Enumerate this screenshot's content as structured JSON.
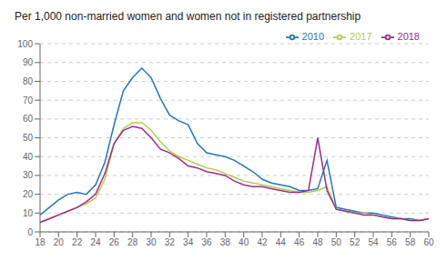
{
  "chart_data": {
    "type": "line",
    "title": "Per 1,000 non-married women and women not in registered partnership",
    "x": [
      18,
      19,
      20,
      21,
      22,
      23,
      24,
      25,
      26,
      27,
      28,
      29,
      30,
      31,
      32,
      33,
      34,
      35,
      36,
      37,
      38,
      39,
      40,
      41,
      42,
      43,
      44,
      45,
      46,
      47,
      48,
      49,
      50,
      51,
      52,
      53,
      54,
      55,
      56,
      57,
      58,
      59,
      60
    ],
    "series": [
      {
        "name": "2010",
        "color": "#2277b8",
        "values": [
          9,
          13,
          17,
          20,
          21,
          20,
          25,
          37,
          57,
          75,
          82,
          87,
          82,
          71,
          62,
          59,
          57,
          47,
          42,
          41,
          40,
          38,
          35,
          32,
          28,
          26,
          25,
          24,
          22,
          22,
          23,
          38,
          13,
          12,
          11,
          10,
          10,
          9,
          8,
          7,
          7,
          6,
          7
        ]
      },
      {
        "name": "2017",
        "color": "#b5cc4a",
        "values": [
          5,
          7,
          9,
          11,
          13,
          15,
          18,
          28,
          47,
          55,
          58,
          58,
          54,
          48,
          43,
          40,
          38,
          36,
          34,
          33,
          31,
          29,
          27,
          26,
          25,
          24,
          23,
          22,
          21,
          21,
          22,
          24,
          12,
          11,
          10,
          10,
          9,
          8,
          7,
          7,
          6,
          6,
          7
        ]
      },
      {
        "name": "2018",
        "color": "#a0298f",
        "values": [
          5,
          7,
          9,
          11,
          13,
          16,
          20,
          31,
          47,
          54,
          56,
          55,
          50,
          44,
          42,
          39,
          35,
          34,
          32,
          31,
          30,
          27,
          25,
          24,
          24,
          23,
          22,
          21,
          21,
          22,
          50,
          22,
          12,
          11,
          10,
          9,
          9,
          8,
          7,
          7,
          6,
          6,
          7
        ]
      }
    ],
    "xlim": [
      18,
      60
    ],
    "xticks": [
      18,
      20,
      22,
      24,
      26,
      28,
      30,
      32,
      34,
      36,
      38,
      40,
      42,
      44,
      46,
      48,
      50,
      52,
      54,
      56,
      58,
      60
    ],
    "ylim": [
      0,
      100
    ],
    "yticks": [
      0,
      10,
      20,
      30,
      40,
      50,
      60,
      70,
      80,
      90,
      100
    ],
    "grid": "y",
    "legend": "upper right"
  }
}
